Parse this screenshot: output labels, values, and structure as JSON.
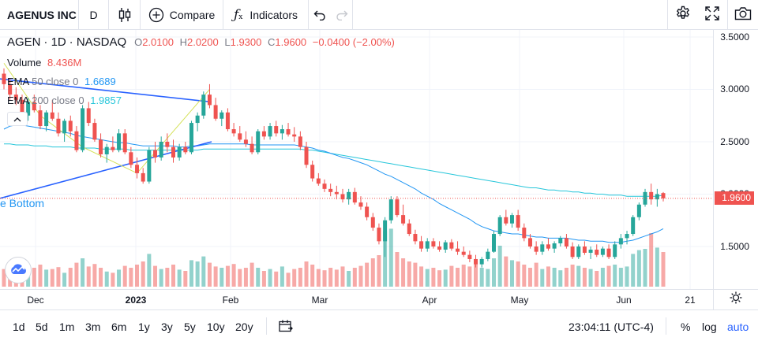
{
  "toolbar": {
    "symbol": "AGENUS INC",
    "interval": "D",
    "compare_label": "Compare",
    "indicators_label": "Indicators"
  },
  "legend": {
    "ticker": "AGEN",
    "interval": "1D",
    "exchange": "NASDAQ",
    "open_label": "O",
    "open": "2.0100",
    "high_label": "H",
    "high": "2.0200",
    "low_label": "L",
    "low": "1.9300",
    "close_label": "C",
    "close": "1.9600",
    "change": "−0.0400 (−2.00%)",
    "volume_label": "Volume",
    "volume": "8.436M",
    "ema50_label": "EMA",
    "ema50_params": "50 close 0",
    "ema50_value": "1.6689",
    "ema200_label": "EMA",
    "ema200_params": "200 close 0",
    "ema200_value": "1.9857",
    "pattern_label": "e Bottom"
  },
  "price_axis": {
    "ticks": [
      "3.5000",
      "3.0000",
      "2.5000",
      "2.0000",
      "1.5000"
    ],
    "current_price": "1.9600"
  },
  "time_axis": {
    "ticks": [
      {
        "label": "Dec",
        "bold": false
      },
      {
        "label": "2023",
        "bold": true
      },
      {
        "label": "Feb",
        "bold": false
      },
      {
        "label": "Mar",
        "bold": false
      },
      {
        "label": "Apr",
        "bold": false
      },
      {
        "label": "May",
        "bold": false
      },
      {
        "label": "Jun",
        "bold": false
      },
      {
        "label": "21",
        "bold": false
      }
    ]
  },
  "bottombar": {
    "ranges": [
      "1d",
      "5d",
      "1m",
      "3m",
      "6m",
      "1y",
      "3y",
      "5y",
      "10y",
      "20y"
    ],
    "time": "23:04:11 (UTC-4)",
    "percent": "%",
    "log": "log",
    "auto": "auto"
  },
  "colors": {
    "up": "#26a69a",
    "down": "#ef5350",
    "ema50": "#2196f3",
    "ema200": "#26c6da",
    "accent": "#2962ff"
  },
  "chart_data": {
    "type": "candlestick",
    "symbol": "AGEN",
    "y_range": [
      1.0,
      3.55
    ],
    "candles": [
      [
        3.15,
        3.2,
        3.0,
        3.05
      ],
      [
        3.05,
        3.1,
        2.9,
        2.95
      ],
      [
        2.95,
        3.02,
        2.85,
        2.9
      ],
      [
        2.9,
        2.95,
        2.72,
        2.75
      ],
      [
        2.75,
        2.92,
        2.7,
        2.88
      ],
      [
        2.88,
        2.95,
        2.78,
        2.8
      ],
      [
        2.8,
        2.85,
        2.62,
        2.65
      ],
      [
        2.65,
        2.8,
        2.6,
        2.78
      ],
      [
        2.78,
        2.9,
        2.7,
        2.72
      ],
      [
        2.72,
        2.78,
        2.55,
        2.58
      ],
      [
        2.58,
        2.72,
        2.5,
        2.7
      ],
      [
        2.7,
        2.75,
        2.55,
        2.6
      ],
      [
        2.6,
        2.65,
        2.4,
        2.42
      ],
      [
        2.42,
        2.85,
        2.4,
        2.82
      ],
      [
        2.82,
        2.88,
        2.65,
        2.68
      ],
      [
        2.68,
        2.72,
        2.5,
        2.52
      ],
      [
        2.52,
        2.58,
        2.35,
        2.38
      ],
      [
        2.38,
        2.48,
        2.3,
        2.45
      ],
      [
        2.45,
        2.55,
        2.4,
        2.42
      ],
      [
        2.42,
        2.62,
        2.4,
        2.58
      ],
      [
        2.58,
        2.62,
        2.38,
        2.4
      ],
      [
        2.4,
        2.45,
        2.25,
        2.28
      ],
      [
        2.28,
        2.35,
        2.15,
        2.2
      ],
      [
        2.2,
        2.25,
        2.1,
        2.12
      ],
      [
        2.12,
        2.45,
        2.1,
        2.42
      ],
      [
        2.42,
        2.5,
        2.3,
        2.35
      ],
      [
        2.35,
        2.55,
        2.32,
        2.5
      ],
      [
        2.5,
        2.58,
        2.4,
        2.45
      ],
      [
        2.45,
        2.52,
        2.3,
        2.35
      ],
      [
        2.35,
        2.48,
        2.32,
        2.45
      ],
      [
        2.45,
        2.5,
        2.38,
        2.4
      ],
      [
        2.4,
        2.7,
        2.38,
        2.68
      ],
      [
        2.68,
        2.78,
        2.6,
        2.75
      ],
      [
        2.75,
        2.98,
        2.72,
        2.95
      ],
      [
        2.95,
        3.05,
        2.82,
        2.85
      ],
      [
        2.85,
        2.92,
        2.7,
        2.72
      ],
      [
        2.72,
        2.8,
        2.65,
        2.78
      ],
      [
        2.78,
        2.82,
        2.6,
        2.62
      ],
      [
        2.62,
        2.68,
        2.55,
        2.58
      ],
      [
        2.58,
        2.65,
        2.5,
        2.52
      ],
      [
        2.52,
        2.6,
        2.45,
        2.48
      ],
      [
        2.48,
        2.55,
        2.38,
        2.4
      ],
      [
        2.4,
        2.62,
        2.38,
        2.6
      ],
      [
        2.6,
        2.65,
        2.52,
        2.55
      ],
      [
        2.55,
        2.68,
        2.52,
        2.65
      ],
      [
        2.65,
        2.7,
        2.55,
        2.58
      ],
      [
        2.58,
        2.66,
        2.52,
        2.62
      ],
      [
        2.62,
        2.68,
        2.55,
        2.57
      ],
      [
        2.57,
        2.64,
        2.5,
        2.55
      ],
      [
        2.55,
        2.6,
        2.42,
        2.45
      ],
      [
        2.45,
        2.5,
        2.25,
        2.28
      ],
      [
        2.28,
        2.32,
        2.12,
        2.15
      ],
      [
        2.15,
        2.2,
        2.08,
        2.1
      ],
      [
        2.1,
        2.14,
        2.02,
        2.05
      ],
      [
        2.05,
        2.1,
        1.98,
        2.02
      ],
      [
        2.02,
        2.08,
        1.95,
        2.0
      ],
      [
        2.0,
        2.05,
        1.92,
        1.95
      ],
      [
        1.95,
        2.05,
        1.9,
        2.02
      ],
      [
        2.02,
        2.06,
        1.9,
        1.92
      ],
      [
        1.92,
        1.98,
        1.85,
        1.88
      ],
      [
        1.88,
        1.92,
        1.75,
        1.78
      ],
      [
        1.78,
        1.82,
        1.65,
        1.68
      ],
      [
        1.68,
        1.72,
        1.52,
        1.55
      ],
      [
        1.55,
        1.78,
        1.4,
        1.75
      ],
      [
        1.75,
        1.98,
        1.72,
        1.95
      ],
      [
        1.95,
        1.98,
        1.78,
        1.8
      ],
      [
        1.8,
        1.9,
        1.7,
        1.72
      ],
      [
        1.72,
        1.76,
        1.6,
        1.62
      ],
      [
        1.62,
        1.66,
        1.52,
        1.55
      ],
      [
        1.55,
        1.6,
        1.45,
        1.48
      ],
      [
        1.48,
        1.58,
        1.45,
        1.55
      ],
      [
        1.55,
        1.58,
        1.48,
        1.5
      ],
      [
        1.5,
        1.55,
        1.45,
        1.47
      ],
      [
        1.47,
        1.56,
        1.44,
        1.54
      ],
      [
        1.54,
        1.57,
        1.46,
        1.48
      ],
      [
        1.48,
        1.55,
        1.42,
        1.45
      ],
      [
        1.45,
        1.5,
        1.4,
        1.42
      ],
      [
        1.42,
        1.46,
        1.35,
        1.38
      ],
      [
        1.38,
        1.42,
        1.3,
        1.33
      ],
      [
        1.33,
        1.4,
        1.3,
        1.38
      ],
      [
        1.38,
        1.48,
        1.36,
        1.45
      ],
      [
        1.45,
        1.65,
        1.44,
        1.62
      ],
      [
        1.62,
        1.8,
        1.6,
        1.78
      ],
      [
        1.78,
        1.85,
        1.7,
        1.72
      ],
      [
        1.72,
        1.82,
        1.68,
        1.8
      ],
      [
        1.8,
        1.85,
        1.65,
        1.68
      ],
      [
        1.68,
        1.72,
        1.55,
        1.58
      ],
      [
        1.58,
        1.62,
        1.48,
        1.5
      ],
      [
        1.5,
        1.55,
        1.42,
        1.45
      ],
      [
        1.45,
        1.55,
        1.42,
        1.52
      ],
      [
        1.52,
        1.58,
        1.46,
        1.48
      ],
      [
        1.48,
        1.55,
        1.44,
        1.53
      ],
      [
        1.53,
        1.6,
        1.5,
        1.58
      ],
      [
        1.58,
        1.62,
        1.48,
        1.5
      ],
      [
        1.5,
        1.54,
        1.38,
        1.4
      ],
      [
        1.4,
        1.52,
        1.38,
        1.5
      ],
      [
        1.5,
        1.55,
        1.42,
        1.44
      ],
      [
        1.44,
        1.5,
        1.38,
        1.47
      ],
      [
        1.47,
        1.52,
        1.4,
        1.42
      ],
      [
        1.42,
        1.5,
        1.4,
        1.48
      ],
      [
        1.48,
        1.52,
        1.38,
        1.4
      ],
      [
        1.4,
        1.55,
        1.38,
        1.52
      ],
      [
        1.52,
        1.62,
        1.48,
        1.58
      ],
      [
        1.58,
        1.65,
        1.52,
        1.62
      ],
      [
        1.62,
        1.8,
        1.6,
        1.78
      ],
      [
        1.78,
        1.92,
        1.75,
        1.9
      ],
      [
        1.9,
        2.05,
        1.88,
        2.02
      ],
      [
        2.02,
        2.1,
        1.9,
        1.95
      ],
      [
        1.95,
        2.05,
        1.88,
        2.0
      ],
      [
        2.01,
        2.02,
        1.93,
        1.96
      ]
    ],
    "volume": [
      0.28,
      0.3,
      0.26,
      0.33,
      0.22,
      0.3,
      0.35,
      0.27,
      0.28,
      0.31,
      0.22,
      0.3,
      0.38,
      0.45,
      0.32,
      0.36,
      0.3,
      0.24,
      0.22,
      0.27,
      0.33,
      0.3,
      0.35,
      0.4,
      0.52,
      0.33,
      0.28,
      0.3,
      0.35,
      0.27,
      0.25,
      0.42,
      0.4,
      0.48,
      0.38,
      0.32,
      0.3,
      0.33,
      0.36,
      0.28,
      0.3,
      0.38,
      0.3,
      0.25,
      0.28,
      0.24,
      0.32,
      0.22,
      0.28,
      0.3,
      0.4,
      0.35,
      0.28,
      0.26,
      0.3,
      0.27,
      0.32,
      0.25,
      0.3,
      0.33,
      0.38,
      0.45,
      0.5,
      0.88,
      0.92,
      0.55,
      0.45,
      0.4,
      0.38,
      0.32,
      0.28,
      0.3,
      0.26,
      0.27,
      0.33,
      0.3,
      0.35,
      0.32,
      0.4,
      0.3,
      0.28,
      0.45,
      0.65,
      0.48,
      0.42,
      0.4,
      0.35,
      0.3,
      0.38,
      0.28,
      0.32,
      0.3,
      0.26,
      0.3,
      0.35,
      0.33,
      0.3,
      0.28,
      0.25,
      0.3,
      0.33,
      0.35,
      0.3,
      0.32,
      0.52,
      0.58,
      0.6,
      0.85,
      0.62,
      0.55
    ],
    "ema50": [
      2.62,
      2.65,
      2.66,
      2.66,
      2.65,
      2.64,
      2.63,
      2.62,
      2.61,
      2.6,
      2.59,
      2.58,
      2.56,
      2.55,
      2.54,
      2.53,
      2.52,
      2.51,
      2.5,
      2.49,
      2.49,
      2.48,
      2.47,
      2.46,
      2.46,
      2.46,
      2.46,
      2.46,
      2.46,
      2.45,
      2.45,
      2.46,
      2.46,
      2.47,
      2.48,
      2.48,
      2.48,
      2.48,
      2.48,
      2.48,
      2.48,
      2.47,
      2.47,
      2.47,
      2.47,
      2.47,
      2.47,
      2.47,
      2.47,
      2.46,
      2.45,
      2.44,
      2.42,
      2.41,
      2.39,
      2.37,
      2.35,
      2.34,
      2.32,
      2.3,
      2.28,
      2.25,
      2.22,
      2.19,
      2.17,
      2.14,
      2.11,
      2.08,
      2.05,
      2.01,
      1.98,
      1.95,
      1.91,
      1.88,
      1.85,
      1.82,
      1.79,
      1.76,
      1.72,
      1.69,
      1.67,
      1.65,
      1.64,
      1.63,
      1.62,
      1.62,
      1.61,
      1.6,
      1.59,
      1.59,
      1.58,
      1.58,
      1.58,
      1.58,
      1.57,
      1.56,
      1.56,
      1.55,
      1.55,
      1.55,
      1.54,
      1.54,
      1.54,
      1.55,
      1.56,
      1.58,
      1.6,
      1.62,
      1.64,
      1.67
    ],
    "ema200": [
      2.48,
      2.48,
      2.47,
      2.47,
      2.47,
      2.46,
      2.46,
      2.46,
      2.45,
      2.45,
      2.45,
      2.45,
      2.44,
      2.44,
      2.44,
      2.44,
      2.43,
      2.43,
      2.43,
      2.43,
      2.43,
      2.42,
      2.42,
      2.42,
      2.42,
      2.42,
      2.42,
      2.42,
      2.42,
      2.42,
      2.42,
      2.42,
      2.42,
      2.43,
      2.43,
      2.43,
      2.43,
      2.43,
      2.43,
      2.43,
      2.43,
      2.43,
      2.43,
      2.43,
      2.43,
      2.43,
      2.43,
      2.43,
      2.43,
      2.43,
      2.42,
      2.42,
      2.41,
      2.4,
      2.39,
      2.38,
      2.37,
      2.36,
      2.35,
      2.34,
      2.33,
      2.32,
      2.31,
      2.3,
      2.29,
      2.28,
      2.27,
      2.26,
      2.25,
      2.24,
      2.23,
      2.22,
      2.21,
      2.2,
      2.19,
      2.18,
      2.17,
      2.16,
      2.15,
      2.14,
      2.13,
      2.12,
      2.11,
      2.1,
      2.09,
      2.08,
      2.07,
      2.06,
      2.06,
      2.05,
      2.04,
      2.04,
      2.03,
      2.03,
      2.02,
      2.02,
      2.01,
      2.01,
      2.0,
      2.0,
      1.99,
      1.99,
      1.99,
      1.98,
      1.98,
      1.98,
      1.98,
      1.98,
      1.98,
      1.99
    ]
  }
}
